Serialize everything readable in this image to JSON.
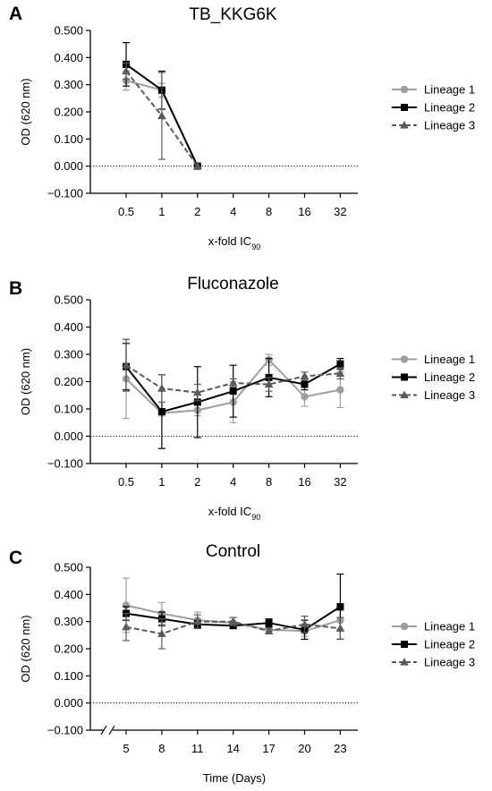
{
  "chart_data": [
    {
      "type": "line",
      "panel_label": "A",
      "title": "TB_KKG6K",
      "ylabel": "OD (620 nm)",
      "xlabel": "x-fold IC",
      "xlabel_sub": "90",
      "ylim": [
        -0.1,
        0.5
      ],
      "yticks": [
        "−0.100",
        "0.000",
        "0.100",
        "0.200",
        "0.300",
        "0.400",
        "0.500"
      ],
      "categories": [
        "0.5",
        "1",
        "2",
        "4",
        "8",
        "16",
        "32"
      ],
      "legend": "right",
      "series": [
        {
          "name": "Lineage 1",
          "color": "#9e9e9e",
          "dash": "solid",
          "marker": "circle",
          "values": [
            0.315,
            0.28,
            0.0,
            null,
            null,
            null,
            null
          ],
          "err": [
            0.035,
            0.025,
            0,
            null,
            null,
            null,
            null
          ]
        },
        {
          "name": "Lineage 2",
          "color": "#000000",
          "dash": "solid",
          "marker": "square",
          "values": [
            0.375,
            0.28,
            0.0,
            null,
            null,
            null,
            null
          ],
          "err": [
            0.08,
            0.07,
            0,
            null,
            null,
            null,
            null
          ]
        },
        {
          "name": "Lineage 3",
          "color": "#5a5a5a",
          "dash": "dashed",
          "marker": "triangle",
          "values": [
            0.35,
            0.185,
            0.0,
            null,
            null,
            null,
            null
          ],
          "err": [
            0.03,
            0.16,
            0,
            null,
            null,
            null,
            null
          ]
        }
      ]
    },
    {
      "type": "line",
      "panel_label": "B",
      "title": "Fluconazole",
      "ylabel": "OD (620 nm)",
      "xlabel": "x-fold IC",
      "xlabel_sub": "90",
      "ylim": [
        -0.1,
        0.5
      ],
      "yticks": [
        "−0.100",
        "0.000",
        "0.100",
        "0.200",
        "0.300",
        "0.400",
        "0.500"
      ],
      "categories": [
        "0.5",
        "1",
        "2",
        "4",
        "8",
        "16",
        "32"
      ],
      "legend": "right",
      "series": [
        {
          "name": "Lineage 1",
          "color": "#9e9e9e",
          "dash": "solid",
          "marker": "circle",
          "values": [
            0.21,
            0.085,
            0.095,
            0.125,
            0.28,
            0.145,
            0.17
          ],
          "err": [
            0.145,
            0.01,
            0.02,
            0.075,
            0.02,
            0.035,
            0.065
          ]
        },
        {
          "name": "Lineage 2",
          "color": "#000000",
          "dash": "solid",
          "marker": "square",
          "values": [
            0.255,
            0.09,
            0.125,
            0.165,
            0.215,
            0.19,
            0.265
          ],
          "err": [
            0.085,
            0.135,
            0.13,
            0.095,
            0.07,
            0.02,
            0.02
          ]
        },
        {
          "name": "Lineage 3",
          "color": "#5a5a5a",
          "dash": "dashed",
          "marker": "triangle",
          "values": [
            0.26,
            0.175,
            0.16,
            0.195,
            0.19,
            0.22,
            0.23
          ],
          "err": [
            0.095,
            0.05,
            0.03,
            0.015,
            0.025,
            0.015,
            0.02
          ]
        }
      ]
    },
    {
      "type": "line",
      "panel_label": "C",
      "title": "Control",
      "ylabel": "OD (620 nm)",
      "xlabel": "Time (Days)",
      "xlabel_sub": "",
      "ylim": [
        -0.1,
        0.5
      ],
      "yticks": [
        "−0.100",
        "0.000",
        "0.100",
        "0.200",
        "0.300",
        "0.400",
        "0.500"
      ],
      "categories": [
        "5",
        "8",
        "11",
        "14",
        "17",
        "20",
        "23"
      ],
      "axis_break": true,
      "legend": "right",
      "series": [
        {
          "name": "Lineage 1",
          "color": "#9e9e9e",
          "dash": "solid",
          "marker": "circle",
          "values": [
            0.36,
            0.33,
            0.305,
            0.295,
            0.27,
            0.265,
            0.305
          ],
          "err": [
            0.1,
            0.04,
            0.03,
            0.02,
            0.015,
            0.02,
            0.035
          ]
        },
        {
          "name": "Lineage 2",
          "color": "#000000",
          "dash": "solid",
          "marker": "square",
          "values": [
            0.33,
            0.31,
            0.29,
            0.285,
            0.295,
            0.27,
            0.355
          ],
          "err": [
            0.025,
            0.025,
            0.015,
            0.01,
            0.015,
            0.035,
            0.12
          ]
        },
        {
          "name": "Lineage 3",
          "color": "#5a5a5a",
          "dash": "dashed",
          "marker": "triangle",
          "values": [
            0.28,
            0.255,
            0.3,
            0.3,
            0.265,
            0.29,
            0.275
          ],
          "err": [
            0.05,
            0.055,
            0.025,
            0.015,
            0.01,
            0.03,
            0.04
          ]
        }
      ]
    }
  ]
}
